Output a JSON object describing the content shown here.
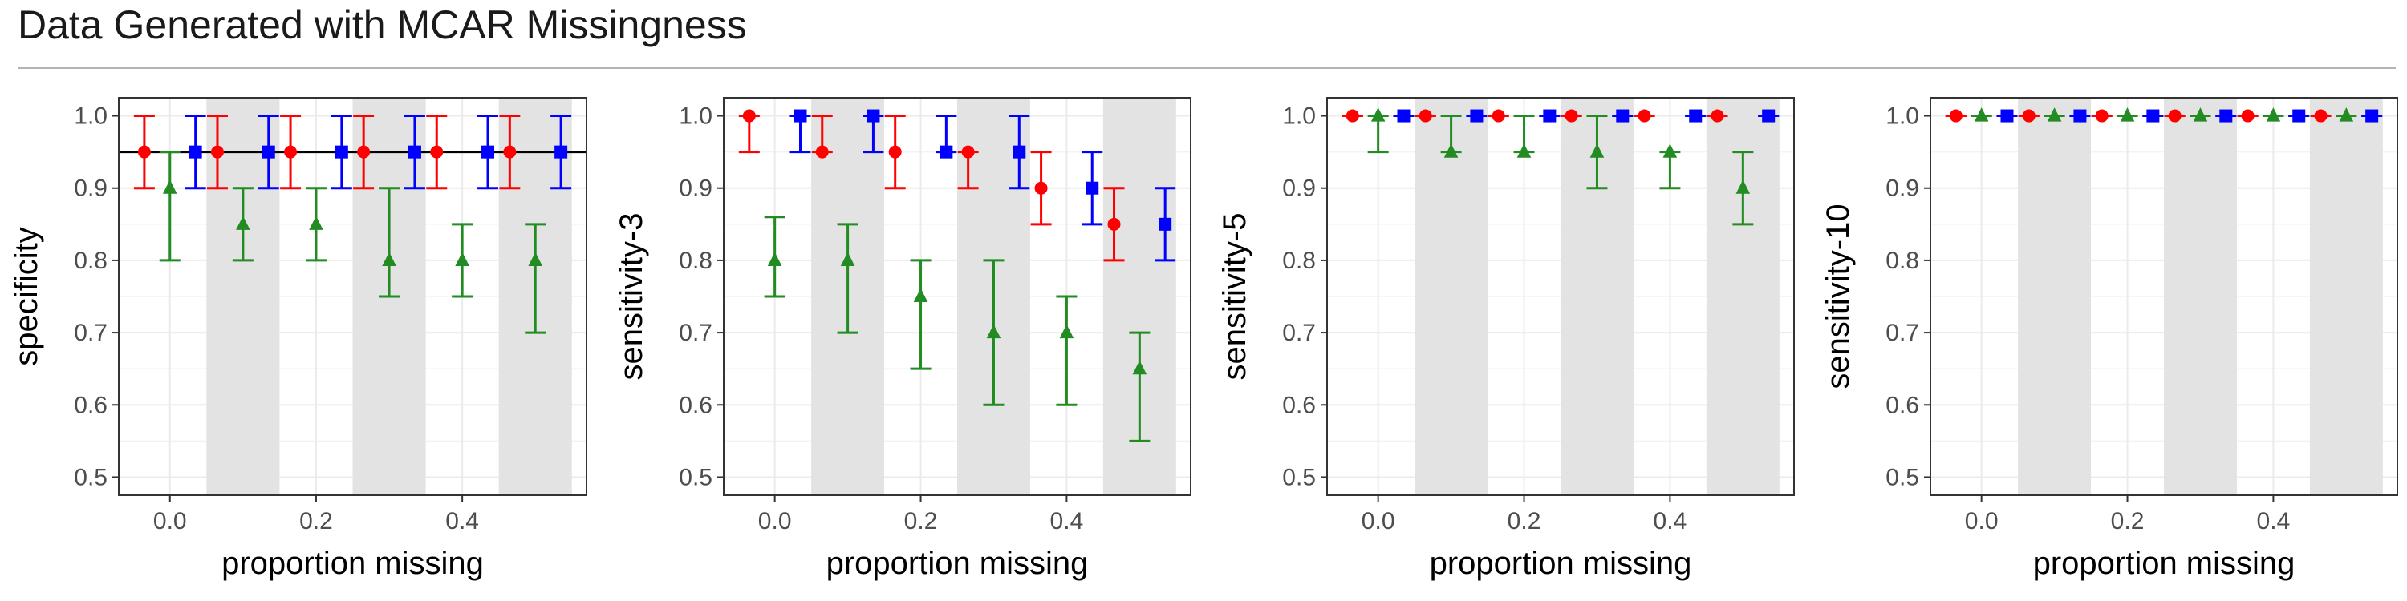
{
  "title": "Data Generated with MCAR Missingness",
  "colors": {
    "series_a": "#ff0000",
    "series_b": "#0000ff",
    "series_c": "#228b22",
    "shade": "#e3e3e3",
    "grid": "#ebebeb",
    "reference_line": "#000000"
  },
  "chart_data": [
    {
      "type": "scatter",
      "ylabel": "specificity",
      "xlabel": "proportion missing",
      "x_ticks": [
        "0.0",
        "0.2",
        "0.4"
      ],
      "y_ticks": [
        "0.5",
        "0.6",
        "0.7",
        "0.8",
        "0.9",
        "1.0"
      ],
      "xlim": [
        -0.07,
        0.57
      ],
      "ylim": [
        0.475,
        1.025
      ],
      "grid": true,
      "shaded_x_bands": [
        [
          0.05,
          0.15
        ],
        [
          0.25,
          0.35
        ],
        [
          0.45,
          0.55
        ]
      ],
      "reference_line_y": 0.95,
      "series": [
        {
          "color_key": "series_a",
          "marker": "circle",
          "x": [
            -0.035,
            0.065,
            0.165,
            0.265,
            0.365,
            0.465
          ],
          "y": [
            0.95,
            0.95,
            0.95,
            0.95,
            0.95,
            0.95
          ],
          "lo": [
            0.9,
            0.9,
            0.9,
            0.9,
            0.9,
            0.9
          ],
          "hi": [
            1.0,
            1.0,
            1.0,
            1.0,
            1.0,
            1.0
          ]
        },
        {
          "color_key": "series_b",
          "marker": "square",
          "x": [
            0.035,
            0.135,
            0.235,
            0.335,
            0.435,
            0.535
          ],
          "y": [
            0.95,
            0.95,
            0.95,
            0.95,
            0.95,
            0.95
          ],
          "lo": [
            0.9,
            0.9,
            0.9,
            0.9,
            0.9,
            0.9
          ],
          "hi": [
            1.0,
            1.0,
            1.0,
            1.0,
            1.0,
            1.0
          ]
        },
        {
          "color_key": "series_c",
          "marker": "triangle",
          "x": [
            0.0,
            0.1,
            0.2,
            0.3,
            0.4,
            0.5
          ],
          "y": [
            0.9,
            0.85,
            0.85,
            0.8,
            0.8,
            0.8
          ],
          "lo": [
            0.8,
            0.8,
            0.8,
            0.75,
            0.75,
            0.7
          ],
          "hi": [
            0.95,
            0.9,
            0.9,
            0.9,
            0.85,
            0.85
          ]
        }
      ]
    },
    {
      "type": "scatter",
      "ylabel": "sensitivity-3",
      "xlabel": "proportion missing",
      "x_ticks": [
        "0.0",
        "0.2",
        "0.4"
      ],
      "y_ticks": [
        "0.5",
        "0.6",
        "0.7",
        "0.8",
        "0.9",
        "1.0"
      ],
      "xlim": [
        -0.07,
        0.57
      ],
      "ylim": [
        0.475,
        1.025
      ],
      "grid": true,
      "shaded_x_bands": [
        [
          0.05,
          0.15
        ],
        [
          0.25,
          0.35
        ],
        [
          0.45,
          0.55
        ]
      ],
      "series": [
        {
          "color_key": "series_a",
          "marker": "circle",
          "x": [
            -0.035,
            0.065,
            0.165,
            0.265,
            0.365,
            0.465
          ],
          "y": [
            1.0,
            0.95,
            0.95,
            0.95,
            0.9,
            0.85
          ],
          "lo": [
            0.95,
            0.95,
            0.9,
            0.9,
            0.85,
            0.8
          ],
          "hi": [
            1.0,
            1.0,
            1.0,
            0.95,
            0.95,
            0.9
          ]
        },
        {
          "color_key": "series_b",
          "marker": "square",
          "x": [
            0.035,
            0.135,
            0.235,
            0.335,
            0.435,
            0.535
          ],
          "y": [
            1.0,
            1.0,
            0.95,
            0.95,
            0.9,
            0.85
          ],
          "lo": [
            0.95,
            0.95,
            0.95,
            0.9,
            0.85,
            0.8
          ],
          "hi": [
            1.0,
            1.0,
            1.0,
            1.0,
            0.95,
            0.9
          ]
        },
        {
          "color_key": "series_c",
          "marker": "triangle",
          "x": [
            0.0,
            0.1,
            0.2,
            0.3,
            0.4,
            0.5
          ],
          "y": [
            0.8,
            0.8,
            0.75,
            0.7,
            0.7,
            0.65
          ],
          "lo": [
            0.75,
            0.7,
            0.65,
            0.6,
            0.6,
            0.55
          ],
          "hi": [
            0.86,
            0.85,
            0.8,
            0.8,
            0.75,
            0.7
          ]
        }
      ]
    },
    {
      "type": "scatter",
      "ylabel": "sensitivity-5",
      "xlabel": "proportion missing",
      "x_ticks": [
        "0.0",
        "0.2",
        "0.4"
      ],
      "y_ticks": [
        "0.5",
        "0.6",
        "0.7",
        "0.8",
        "0.9",
        "1.0"
      ],
      "xlim": [
        -0.07,
        0.57
      ],
      "ylim": [
        0.475,
        1.025
      ],
      "grid": true,
      "shaded_x_bands": [
        [
          0.05,
          0.15
        ],
        [
          0.25,
          0.35
        ],
        [
          0.45,
          0.55
        ]
      ],
      "series": [
        {
          "color_key": "series_a",
          "marker": "circle",
          "x": [
            -0.035,
            0.065,
            0.165,
            0.265,
            0.365,
            0.465
          ],
          "y": [
            1.0,
            1.0,
            1.0,
            1.0,
            1.0,
            1.0
          ],
          "lo": [
            1.0,
            1.0,
            1.0,
            1.0,
            1.0,
            1.0
          ],
          "hi": [
            1.0,
            1.0,
            1.0,
            1.0,
            1.0,
            1.0
          ]
        },
        {
          "color_key": "series_b",
          "marker": "square",
          "x": [
            0.035,
            0.135,
            0.235,
            0.335,
            0.435,
            0.535
          ],
          "y": [
            1.0,
            1.0,
            1.0,
            1.0,
            1.0,
            1.0
          ],
          "lo": [
            1.0,
            1.0,
            1.0,
            1.0,
            1.0,
            1.0
          ],
          "hi": [
            1.0,
            1.0,
            1.0,
            1.0,
            1.0,
            1.0
          ]
        },
        {
          "color_key": "series_c",
          "marker": "triangle",
          "x": [
            0.0,
            0.1,
            0.2,
            0.3,
            0.4,
            0.5
          ],
          "y": [
            1.0,
            0.95,
            0.95,
            0.95,
            0.95,
            0.9
          ],
          "lo": [
            0.95,
            0.95,
            0.95,
            0.9,
            0.9,
            0.85
          ],
          "hi": [
            1.0,
            1.0,
            1.0,
            1.0,
            0.95,
            0.95
          ]
        }
      ]
    },
    {
      "type": "scatter",
      "ylabel": "sensitivity-10",
      "xlabel": "proportion missing",
      "x_ticks": [
        "0.0",
        "0.2",
        "0.4"
      ],
      "y_ticks": [
        "0.5",
        "0.6",
        "0.7",
        "0.8",
        "0.9",
        "1.0"
      ],
      "xlim": [
        -0.07,
        0.57
      ],
      "ylim": [
        0.475,
        1.025
      ],
      "grid": true,
      "shaded_x_bands": [
        [
          0.05,
          0.15
        ],
        [
          0.25,
          0.35
        ],
        [
          0.45,
          0.55
        ]
      ],
      "series": [
        {
          "color_key": "series_a",
          "marker": "circle",
          "x": [
            -0.035,
            0.065,
            0.165,
            0.265,
            0.365,
            0.465
          ],
          "y": [
            1.0,
            1.0,
            1.0,
            1.0,
            1.0,
            1.0
          ],
          "lo": [
            1.0,
            1.0,
            1.0,
            1.0,
            1.0,
            1.0
          ],
          "hi": [
            1.0,
            1.0,
            1.0,
            1.0,
            1.0,
            1.0
          ]
        },
        {
          "color_key": "series_b",
          "marker": "square",
          "x": [
            0.035,
            0.135,
            0.235,
            0.335,
            0.435,
            0.535
          ],
          "y": [
            1.0,
            1.0,
            1.0,
            1.0,
            1.0,
            1.0
          ],
          "lo": [
            1.0,
            1.0,
            1.0,
            1.0,
            1.0,
            1.0
          ],
          "hi": [
            1.0,
            1.0,
            1.0,
            1.0,
            1.0,
            1.0
          ]
        },
        {
          "color_key": "series_c",
          "marker": "triangle",
          "x": [
            0.0,
            0.1,
            0.2,
            0.3,
            0.4,
            0.5
          ],
          "y": [
            1.0,
            1.0,
            1.0,
            1.0,
            1.0,
            1.0
          ],
          "lo": [
            1.0,
            1.0,
            1.0,
            1.0,
            1.0,
            1.0
          ],
          "hi": [
            1.0,
            1.0,
            1.0,
            1.0,
            1.0,
            1.0
          ]
        }
      ]
    }
  ]
}
